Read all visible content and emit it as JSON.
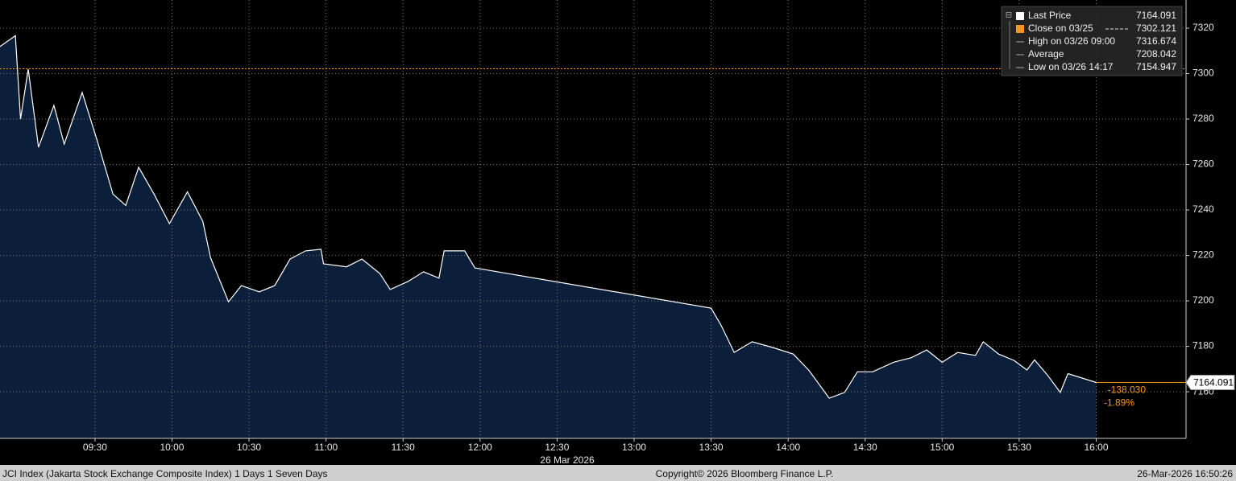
{
  "chart_data": {
    "type": "area",
    "x": [
      533,
      539,
      541,
      544,
      548,
      554,
      558,
      565,
      571,
      577,
      582,
      587,
      593,
      599,
      606,
      612,
      615,
      622,
      627,
      634,
      640,
      646,
      652,
      658,
      659,
      668,
      674,
      681,
      685,
      692,
      698,
      704,
      706,
      714,
      718,
      810,
      814,
      819,
      826,
      834,
      842,
      848,
      856,
      862,
      867,
      873,
      881,
      888,
      894,
      900,
      906,
      913,
      916,
      922,
      928,
      933,
      936,
      941,
      946,
      949,
      960
    ],
    "values": [
      7311.9,
      7316.7,
      7280,
      7302,
      7267.6,
      7286,
      7269,
      7291.7,
      7270,
      7247,
      7242,
      7258.8,
      7247,
      7234,
      7248,
      7235,
      7219,
      7199.6,
      7206.7,
      7204,
      7206.7,
      7218.4,
      7222,
      7222.7,
      7216.3,
      7215,
      7218.4,
      7212,
      7205,
      7208.6,
      7212.8,
      7210,
      7222,
      7222,
      7214.5,
      7196.8,
      7189,
      7177.3,
      7182,
      7179.5,
      7176.6,
      7169.6,
      7157.2,
      7159.7,
      7168.8,
      7168.8,
      7173,
      7175,
      7178.4,
      7173,
      7177.3,
      7176,
      7182,
      7176.6,
      7173.8,
      7169.6,
      7174,
      7167.4,
      7159.7,
      7168,
      7164.091
    ],
    "xlim": [
      533,
      995
    ],
    "ylim": [
      7139.5,
      7332.4
    ],
    "xticks": [
      {
        "value": 570,
        "label": "09:30"
      },
      {
        "value": 600,
        "label": "10:00"
      },
      {
        "value": 630,
        "label": "10:30"
      },
      {
        "value": 660,
        "label": "11:00"
      },
      {
        "value": 690,
        "label": "11:30"
      },
      {
        "value": 720,
        "label": "12:00"
      },
      {
        "value": 750,
        "label": "12:30"
      },
      {
        "value": 780,
        "label": "13:00"
      },
      {
        "value": 810,
        "label": "13:30"
      },
      {
        "value": 840,
        "label": "14:00"
      },
      {
        "value": 870,
        "label": "14:30"
      },
      {
        "value": 900,
        "label": "15:00"
      },
      {
        "value": 930,
        "label": "15:30"
      },
      {
        "value": 960,
        "label": "16:00"
      }
    ],
    "yticks": [
      7160,
      7180,
      7200,
      7220,
      7240,
      7260,
      7280,
      7300,
      7320
    ],
    "grid": true,
    "line_color": "#ffffff",
    "fill_color": "#0b1f3a",
    "close_line": {
      "value": 7302.121,
      "color": "#f7941d"
    },
    "date_label": "26 Mar 2026",
    "legend": [
      {
        "name": "Last Price",
        "value": 7164.091,
        "color": "#ffffff"
      },
      {
        "name": "Close on 03/25",
        "value": 7302.121,
        "color": "#f7941d"
      },
      {
        "name": "High on 03/26 09:00",
        "value": 7316.674,
        "color": "#aaaaaa"
      },
      {
        "name": "Average",
        "value": 7208.042,
        "color": "#aaaaaa"
      },
      {
        "name": "Low on 03/26 14:17",
        "value": 7154.947,
        "color": "#aaaaaa"
      }
    ],
    "change": {
      "value": -138.03,
      "label": "-138.030"
    },
    "change_pct": {
      "value": -1.89,
      "label": "-1.89%"
    },
    "footer": {
      "left": "JCI Index (Jakarta Stock Exchange Composite Index) 1 Days 1 Seven Days",
      "center": "Copyright© 2026 Bloomberg Finance L.P.",
      "right": "26-Mar-2026 16:50:26"
    }
  }
}
